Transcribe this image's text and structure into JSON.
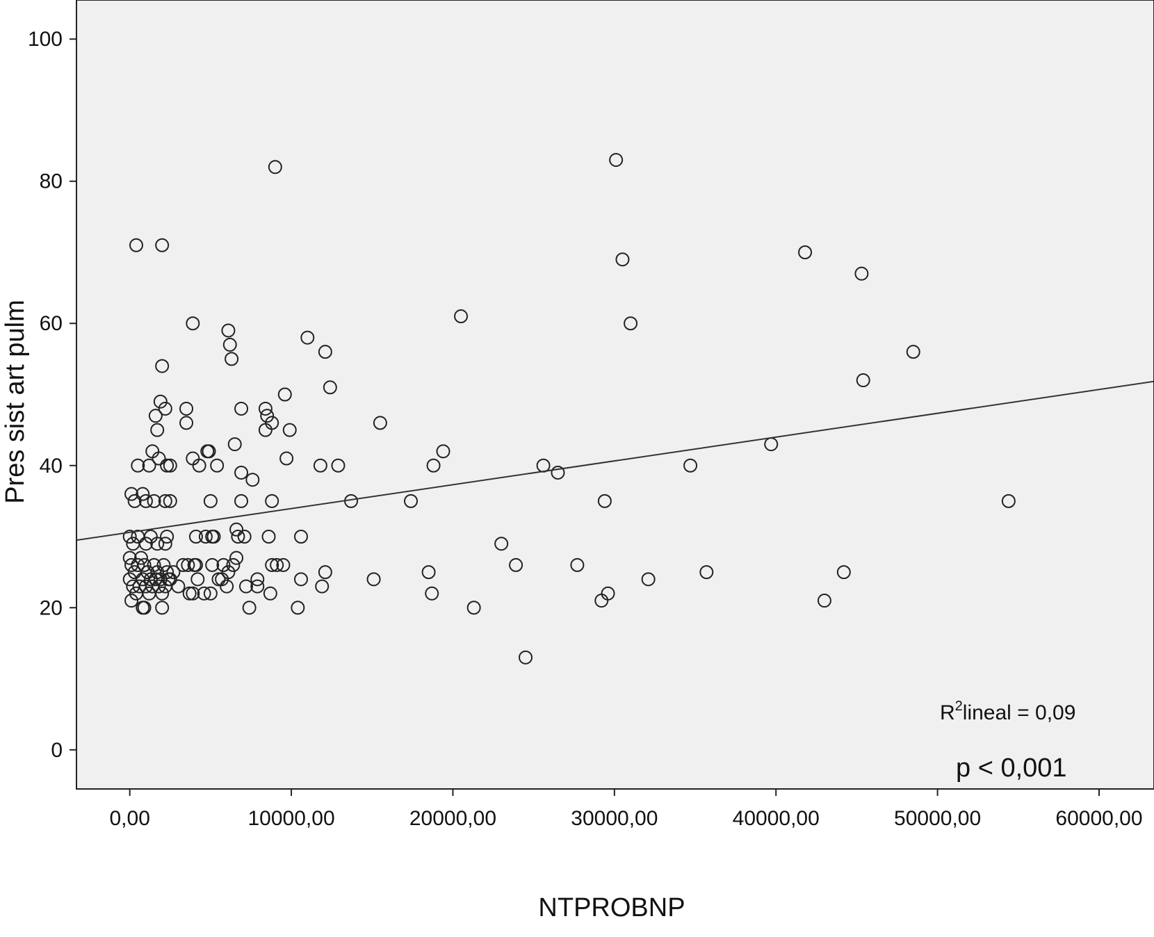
{
  "chart_data": {
    "type": "scatter",
    "xlabel": "NTPROBNP",
    "ylabel": "Pres sist art pulm",
    "xlim": [
      -3300,
      63400
    ],
    "ylim": [
      -5.5,
      105.5
    ],
    "x_ticks": [
      0,
      10000,
      20000,
      30000,
      40000,
      50000,
      60000
    ],
    "x_tick_labels": [
      "0,00",
      "10000,00",
      "20000,00",
      "30000,00",
      "40000,00",
      "50000,00",
      "60000,00"
    ],
    "y_ticks": [
      0,
      20,
      40,
      60,
      80,
      100
    ],
    "y_tick_labels": [
      "0",
      "20",
      "40",
      "60",
      "80",
      "100"
    ],
    "grid": false,
    "fit_line": {
      "intercept": 30.6,
      "slope": 0.000335
    },
    "annotations": {
      "r2_prefix": "R",
      "r2_sup": "2",
      "r2_text": "lineal = 0,09",
      "p_value": "p < 0,001"
    },
    "points": [
      [
        400,
        71
      ],
      [
        2000,
        71
      ],
      [
        9000,
        82
      ],
      [
        30100,
        83
      ],
      [
        30500,
        69
      ],
      [
        31000,
        60
      ],
      [
        41800,
        70
      ],
      [
        45300,
        67
      ],
      [
        48500,
        56
      ],
      [
        45400,
        52
      ],
      [
        20500,
        61
      ],
      [
        3900,
        60
      ],
      [
        6100,
        59
      ],
      [
        6200,
        57
      ],
      [
        6300,
        55
      ],
      [
        11000,
        58
      ],
      [
        12100,
        56
      ],
      [
        12400,
        51
      ],
      [
        9600,
        50
      ],
      [
        2000,
        54
      ],
      [
        1900,
        49
      ],
      [
        2200,
        48
      ],
      [
        1600,
        47
      ],
      [
        1700,
        45
      ],
      [
        3500,
        48
      ],
      [
        3500,
        46
      ],
      [
        6900,
        48
      ],
      [
        8400,
        48
      ],
      [
        8500,
        47
      ],
      [
        8800,
        46
      ],
      [
        8400,
        45
      ],
      [
        9900,
        45
      ],
      [
        15500,
        46
      ],
      [
        1400,
        42
      ],
      [
        1800,
        41
      ],
      [
        1200,
        40
      ],
      [
        2300,
        40
      ],
      [
        2500,
        40
      ],
      [
        3900,
        41
      ],
      [
        4300,
        40
      ],
      [
        4900,
        42
      ],
      [
        4800,
        42
      ],
      [
        5400,
        40
      ],
      [
        6500,
        43
      ],
      [
        6900,
        39
      ],
      [
        7600,
        38
      ],
      [
        9700,
        41
      ],
      [
        11800,
        40
      ],
      [
        12900,
        40
      ],
      [
        18800,
        40
      ],
      [
        19400,
        42
      ],
      [
        25600,
        40
      ],
      [
        26500,
        39
      ],
      [
        34700,
        40
      ],
      [
        39700,
        43
      ],
      [
        500,
        40
      ],
      [
        100,
        36
      ],
      [
        300,
        35
      ],
      [
        800,
        36
      ],
      [
        1000,
        35
      ],
      [
        1500,
        35
      ],
      [
        2200,
        35
      ],
      [
        2500,
        35
      ],
      [
        5000,
        35
      ],
      [
        6900,
        35
      ],
      [
        8800,
        35
      ],
      [
        13700,
        35
      ],
      [
        17400,
        35
      ],
      [
        29400,
        35
      ],
      [
        54400,
        35
      ],
      [
        0,
        30
      ],
      [
        200,
        29
      ],
      [
        500,
        30
      ],
      [
        1000,
        29
      ],
      [
        1300,
        30
      ],
      [
        1700,
        29
      ],
      [
        2300,
        30
      ],
      [
        2200,
        29
      ],
      [
        4100,
        30
      ],
      [
        4700,
        30
      ],
      [
        5100,
        30
      ],
      [
        6600,
        31
      ],
      [
        6700,
        30
      ],
      [
        7100,
        30
      ],
      [
        8600,
        30
      ],
      [
        10600,
        30
      ],
      [
        23000,
        29
      ],
      [
        0,
        27
      ],
      [
        100,
        26
      ],
      [
        300,
        25
      ],
      [
        500,
        26
      ],
      [
        700,
        27
      ],
      [
        900,
        26
      ],
      [
        1100,
        25
      ],
      [
        1300,
        24
      ],
      [
        1500,
        26
      ],
      [
        1700,
        25
      ],
      [
        1900,
        24
      ],
      [
        2100,
        26
      ],
      [
        2300,
        25
      ],
      [
        2500,
        24
      ],
      [
        2700,
        25
      ],
      [
        0,
        24
      ],
      [
        200,
        23
      ],
      [
        400,
        22
      ],
      [
        600,
        23
      ],
      [
        800,
        24
      ],
      [
        1000,
        23
      ],
      [
        1200,
        22
      ],
      [
        1400,
        23
      ],
      [
        1600,
        24
      ],
      [
        1800,
        23
      ],
      [
        2000,
        22
      ],
      [
        2200,
        23
      ],
      [
        2400,
        24
      ],
      [
        100,
        21
      ],
      [
        800,
        20
      ],
      [
        900,
        20
      ],
      [
        2000,
        20
      ],
      [
        3000,
        23
      ],
      [
        3300,
        26
      ],
      [
        3600,
        26
      ],
      [
        3700,
        22
      ],
      [
        3900,
        22
      ],
      [
        4000,
        26
      ],
      [
        4100,
        26
      ],
      [
        4200,
        24
      ],
      [
        4600,
        22
      ],
      [
        5000,
        22
      ],
      [
        5100,
        26
      ],
      [
        5200,
        30
      ],
      [
        5500,
        24
      ],
      [
        5700,
        24
      ],
      [
        5800,
        26
      ],
      [
        6000,
        23
      ],
      [
        6100,
        25
      ],
      [
        6400,
        26
      ],
      [
        6600,
        27
      ],
      [
        7200,
        23
      ],
      [
        7400,
        20
      ],
      [
        7900,
        24
      ],
      [
        7900,
        23
      ],
      [
        8700,
        22
      ],
      [
        8800,
        26
      ],
      [
        9100,
        26
      ],
      [
        9500,
        26
      ],
      [
        10400,
        20
      ],
      [
        10600,
        24
      ],
      [
        11900,
        23
      ],
      [
        12100,
        25
      ],
      [
        15100,
        24
      ],
      [
        18500,
        25
      ],
      [
        18700,
        22
      ],
      [
        21300,
        20
      ],
      [
        23900,
        26
      ],
      [
        24500,
        13
      ],
      [
        27700,
        26
      ],
      [
        29200,
        21
      ],
      [
        29600,
        22
      ],
      [
        32100,
        24
      ],
      [
        35700,
        25
      ],
      [
        43000,
        21
      ],
      [
        44200,
        25
      ]
    ]
  }
}
